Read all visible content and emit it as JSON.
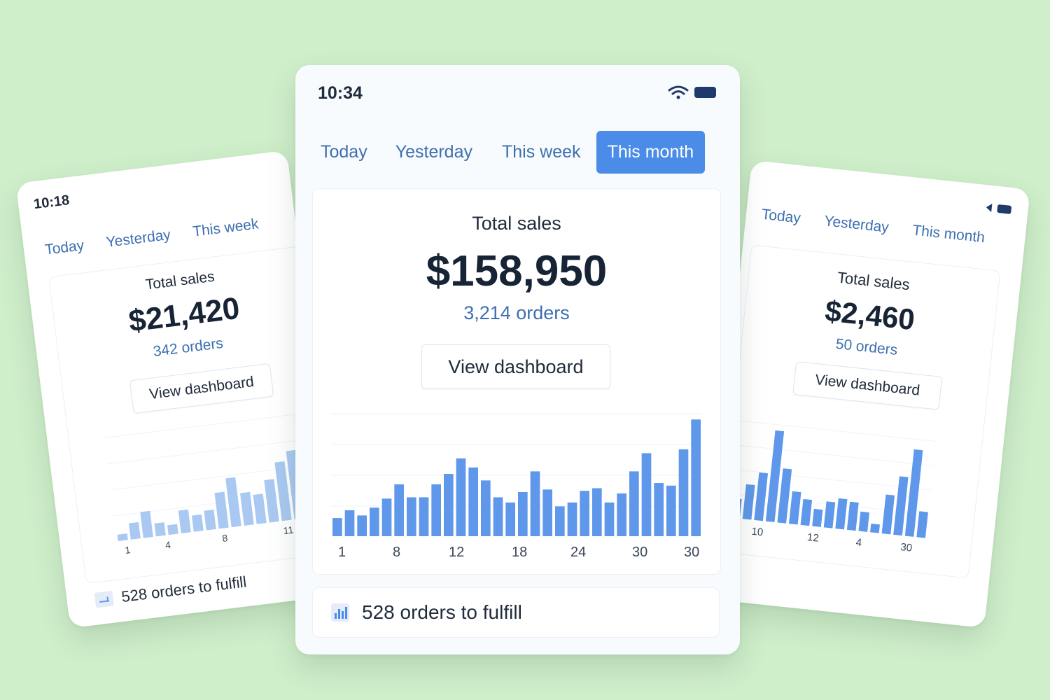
{
  "colors": {
    "accent": "#4a8ce8",
    "bar": "#5f97ea",
    "bar_light": "#a9c9f2",
    "background": "#cfeeca"
  },
  "left": {
    "time": "10:18",
    "tabs": [
      "Today",
      "Yesterday",
      "This week"
    ],
    "total_label": "Total sales",
    "amount": "$21,420",
    "orders": "342 orders",
    "button": "View dashboard",
    "fulfill": "528 orders to fulfill",
    "chart_data": {
      "type": "bar",
      "values": [
        2,
        5,
        8,
        4,
        3,
        7,
        5,
        6,
        11,
        15,
        10,
        9,
        13,
        18,
        21,
        30
      ],
      "ylim": [
        0,
        32
      ],
      "ticks": [
        "1",
        "4",
        "8",
        "11"
      ]
    }
  },
  "center": {
    "time": "10:34",
    "tabs": [
      "Today",
      "Yesterday",
      "This week",
      "This month"
    ],
    "total_label": "Total sales",
    "amount": "$158,950",
    "orders": "3,214 orders",
    "button": "View dashboard",
    "fulfill": "528 orders to fulfill",
    "chart_data": {
      "type": "bar",
      "values": [
        14,
        20,
        16,
        22,
        29,
        40,
        30,
        30,
        40,
        48,
        60,
        53,
        43,
        30,
        26,
        34,
        50,
        36,
        23,
        26,
        35,
        37,
        26,
        33,
        50,
        64,
        41,
        39,
        67,
        90
      ],
      "ylim": [
        0,
        95
      ],
      "ticks": [
        "1",
        "8",
        "12",
        "18",
        "24",
        "30",
        "30"
      ]
    }
  },
  "right": {
    "tabs": [
      "Today",
      "Yesterday",
      "This month"
    ],
    "total_label": "Total sales",
    "amount": "$2,460",
    "orders": "50 orders",
    "button": "View dashboard",
    "chart_data": {
      "type": "bar",
      "values": [
        12,
        9,
        16,
        22,
        42,
        25,
        15,
        12,
        8,
        12,
        14,
        13,
        9,
        4,
        18,
        27,
        40,
        12
      ],
      "ylim": [
        0,
        45
      ],
      "ticks": [
        "10",
        "12",
        "4",
        "30"
      ]
    }
  }
}
